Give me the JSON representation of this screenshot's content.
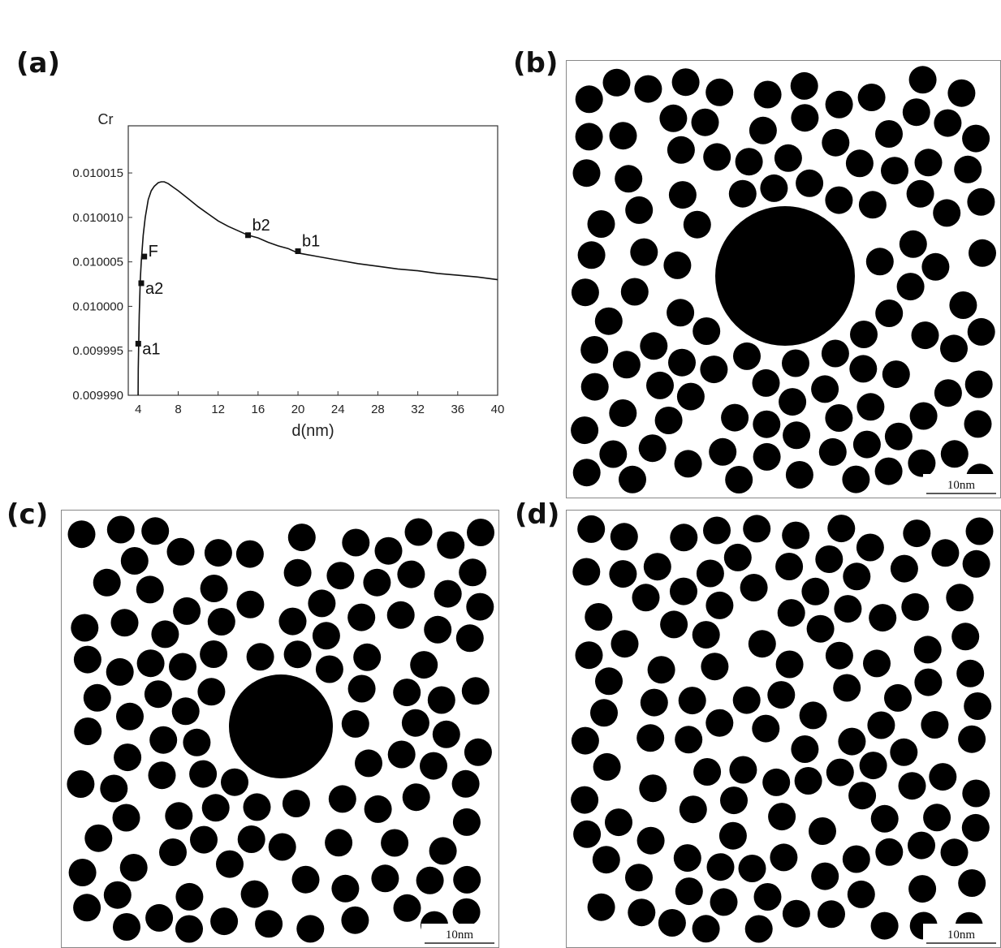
{
  "panel_labels": {
    "a": "(a)",
    "b": "(b)",
    "c": "(c)",
    "d": "(d)"
  },
  "scale_bar_label": "10nm",
  "chart_data": {
    "type": "line",
    "title": "",
    "xlabel": "d(nm)",
    "ylabel": "Cr",
    "xlim": [
      3,
      40
    ],
    "ylim": [
      0.00999,
      0.0100203
    ],
    "x_ticks": [
      4,
      8,
      12,
      16,
      20,
      24,
      28,
      32,
      36,
      40
    ],
    "y_ticks": [
      0.00999,
      0.009995,
      0.01,
      0.010005,
      0.01001,
      0.010015
    ],
    "y_tick_labels": [
      "0.009990",
      "0.009995",
      "0.010000",
      "0.010005",
      "0.010010",
      "0.010015"
    ],
    "grid": false,
    "series": [
      {
        "x": [
          3.98,
          4.0,
          4.05,
          4.1,
          4.2,
          4.3,
          4.5,
          4.7,
          5.0,
          5.3,
          5.6,
          6.0,
          6.3,
          6.6,
          7.0,
          7.5,
          8,
          9,
          10,
          11,
          12,
          13,
          14,
          15,
          16,
          17,
          18,
          19,
          20,
          22,
          24,
          26,
          28,
          30,
          32,
          34,
          36,
          38,
          40
        ],
        "y": [
          0.00999,
          0.009993,
          0.009996,
          0.009999,
          0.010003,
          0.010005,
          0.010008,
          0.01001,
          0.010012,
          0.010013,
          0.0100135,
          0.0100139,
          0.010014,
          0.010014,
          0.0100138,
          0.0100134,
          0.010013,
          0.0100121,
          0.0100112,
          0.0100104,
          0.0100096,
          0.010009,
          0.0100085,
          0.010008,
          0.0100077,
          0.0100072,
          0.0100068,
          0.0100065,
          0.010006,
          0.0100056,
          0.0100052,
          0.0100048,
          0.0100045,
          0.0100042,
          0.010004,
          0.0100037,
          0.0100035,
          0.0100033,
          0.010003
        ]
      }
    ],
    "points": [
      {
        "label": "a1",
        "x": 4.0,
        "y": 0.0099958
      },
      {
        "label": "a2",
        "x": 4.3,
        "y": 0.0100026
      },
      {
        "label": "F",
        "x": 4.6,
        "y": 0.0100056
      },
      {
        "label": "b2",
        "x": 15,
        "y": 0.010008
      },
      {
        "label": "b1",
        "x": 20,
        "y": 0.0100062
      }
    ]
  }
}
